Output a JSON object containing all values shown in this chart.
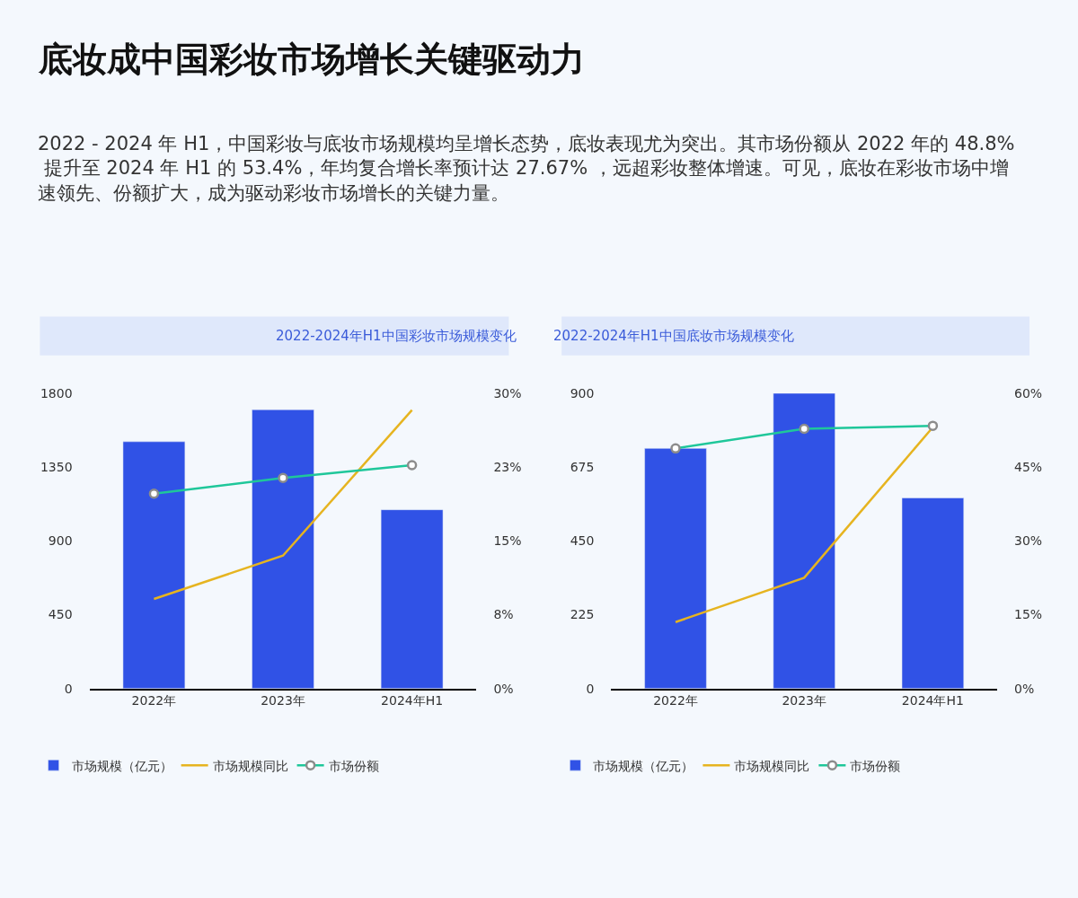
{
  "chart_data": [
    {
      "type": "bar",
      "title": "2022-2024年H1中国彩妆市场规模变化",
      "annotations": [
        "底妆成中国彩妆市场增长关键驱动力",
        "2022 - 2024 年 H1，中国彩妆与底妆市场规模均呈增长态势，底妆表现尤为突出。其市场份额从 2022 年的 48.8% 提升至 2024 年 H1 的 53.4%，年均复合增长率预计达 27.67% ，远超彩妆整体增速。可见，底妆在彩妆市场中增速领先、份额扩大，成为驱动彩妆市场增长的关键力量。"
      ],
      "categories": [
        "2022年",
        "2023年",
        "2024年H1"
      ],
      "series": [
        {
          "name": "市场规模（亿元）",
          "color": "#3052e6",
          "values": [
            1505,
            1700,
            1090
          ]
        },
        {
          "name": "市场规模同比",
          "type": "line",
          "axis": "y2",
          "color": "#e6b420",
          "marker": "none",
          "values": [
            9.1,
            13.5,
            28.3
          ]
        },
        {
          "name": "市场份额",
          "type": "line",
          "axis": "y2",
          "color": "#1fc79a",
          "marker": "circle",
          "values": [
            19.8,
            21.4,
            22.7
          ]
        }
      ],
      "ylim": [
        0,
        1800
      ],
      "yticks": [
        0,
        450,
        900,
        1350,
        1800
      ],
      "y2lim": [
        0,
        30
      ],
      "y2ticks": [
        {
          "value": 0,
          "label": "0%"
        },
        {
          "value": 7.5,
          "label": "8%"
        },
        {
          "value": 15,
          "label": "15%"
        },
        {
          "value": 22.5,
          "label": "23%"
        },
        {
          "value": 30,
          "label": "30%"
        }
      ],
      "grid": false,
      "legend": "bottom"
    },
    {
      "type": "bar",
      "title": "2022-2024年H1中国底妆市场规模变化",
      "categories": [
        "2022年",
        "2023年",
        "2024年H1"
      ],
      "series": [
        {
          "name": "市场规模（亿元）",
          "color": "#3052e6",
          "values": [
            732,
            900,
            581
          ]
        },
        {
          "name": "市场规模同比",
          "type": "line",
          "axis": "y2",
          "color": "#e6b420",
          "marker": "none",
          "values": [
            13.5,
            22.5,
            53.1
          ]
        },
        {
          "name": "市场份额",
          "type": "line",
          "axis": "y2",
          "color": "#1fc79a",
          "marker": "circle",
          "values": [
            48.8,
            52.8,
            53.4
          ]
        }
      ],
      "ylim": [
        0,
        900
      ],
      "yticks": [
        0,
        225,
        450,
        675,
        900
      ],
      "y2lim": [
        0,
        60
      ],
      "y2ticks": [
        {
          "value": 0,
          "label": "0%"
        },
        {
          "value": 15,
          "label": "15%"
        },
        {
          "value": 30,
          "label": "30%"
        },
        {
          "value": 45,
          "label": "45%"
        },
        {
          "value": 60,
          "label": "60%"
        }
      ],
      "grid": false,
      "legend": "bottom"
    }
  ]
}
